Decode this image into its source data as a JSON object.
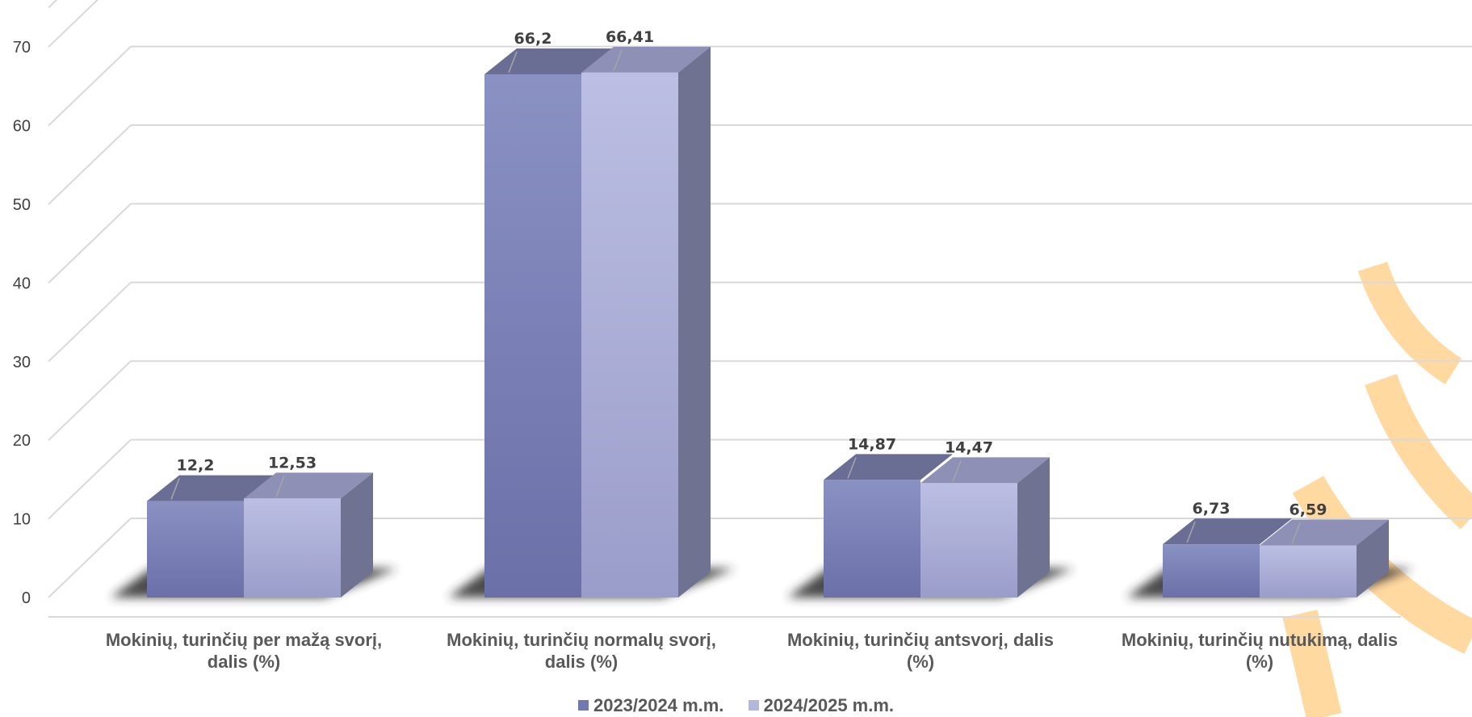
{
  "colors": {
    "series1_front": "#8087bb",
    "series1_top": "#6a6e95",
    "series1_side": "#5f6385",
    "series2_front": "#b4b7dd",
    "series2_top": "#8e91b5",
    "series2_side": "#6f7290",
    "grid": "#d9d9d9",
    "watermark": "#ffd9a0"
  },
  "chart_data": {
    "type": "bar",
    "categories": [
      [
        "Mokinių, turinčių per mažą svorį,",
        "dalis (%)"
      ],
      [
        "Mokinių, turinčių normalų svorį,",
        "dalis (%)"
      ],
      [
        "Mokinių, turinčių antsvorį, dalis",
        "(%)"
      ],
      [
        "Mokinių, turinčių nutukimą, dalis",
        "(%)"
      ]
    ],
    "series": [
      {
        "name": "2023/2024 m.m.",
        "values": [
          12.2,
          66.2,
          14.87,
          6.73
        ],
        "labels": [
          "12,2",
          "66,2",
          "14,87",
          "6,73"
        ]
      },
      {
        "name": "2024/2025 m.m.",
        "values": [
          12.53,
          66.41,
          14.47,
          6.59
        ],
        "labels": [
          "12,53",
          "66,41",
          "14,47",
          "6,59"
        ]
      }
    ],
    "yticks": [
      "0",
      "10",
      "20",
      "30",
      "40",
      "50",
      "60",
      "70"
    ],
    "ylim": [
      0,
      70
    ],
    "grid": true,
    "style": "3d-clustered-column",
    "legend_position": "bottom"
  }
}
